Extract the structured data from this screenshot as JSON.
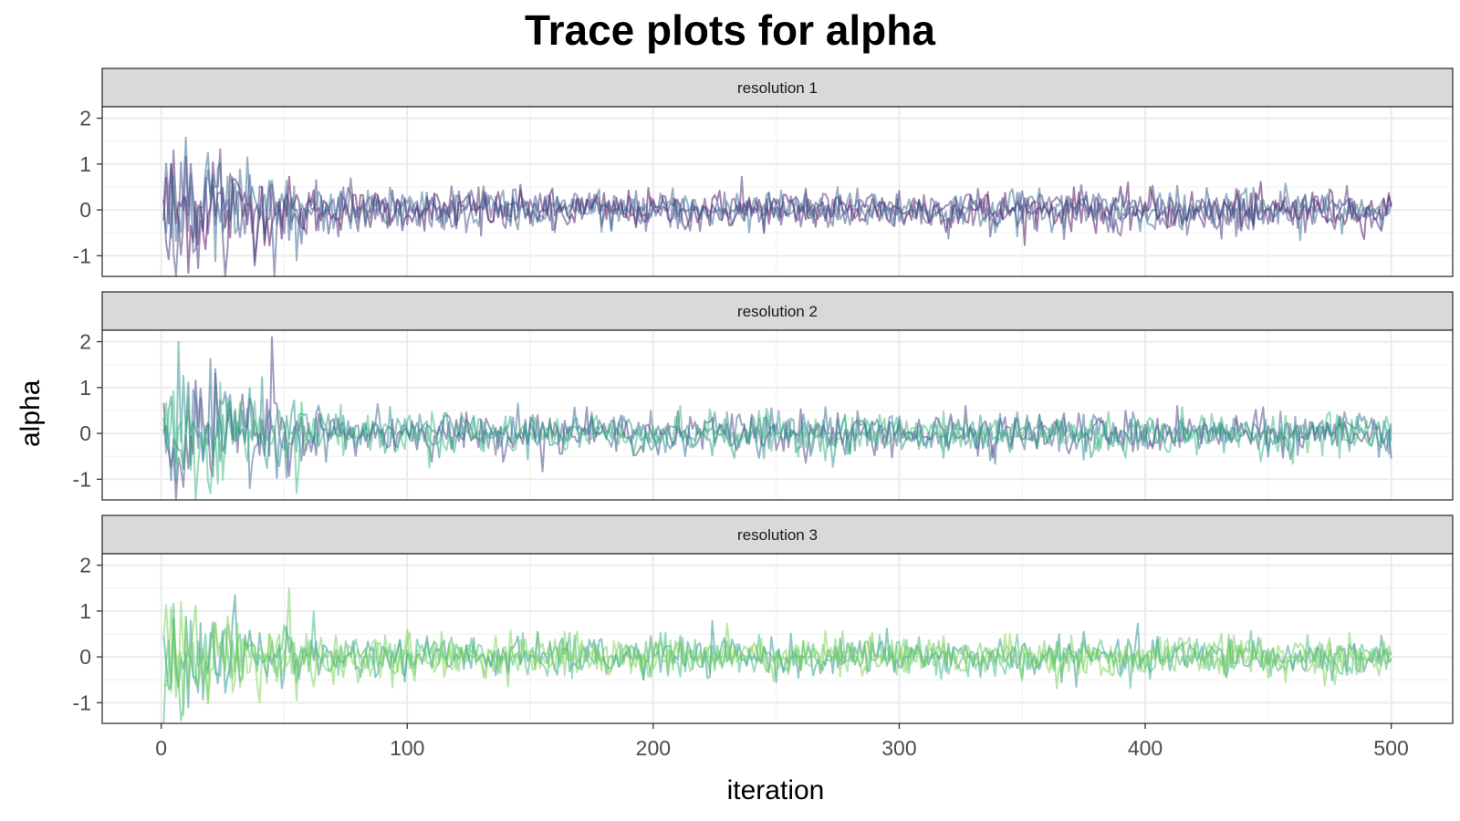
{
  "chart_data": {
    "type": "line",
    "title": "Trace plots for alpha",
    "xlabel": "iteration",
    "ylabel": "alpha",
    "xlim": [
      -24,
      525
    ],
    "ylim": [
      -1.45,
      2.25
    ],
    "x_ticks": [
      0,
      100,
      200,
      300,
      400,
      500
    ],
    "y_ticks": [
      -1,
      0,
      1,
      2
    ],
    "grid": true,
    "legend": "none",
    "iterations": [
      1,
      500
    ],
    "panels": [
      {
        "strip": "resolution 1",
        "series_colors": [
          "#440154",
          "#482878",
          "#3e4a89",
          "#31688e"
        ],
        "early_spread": 0.75,
        "late_spread": 0.22,
        "peak_max": 1.3,
        "peak_min": -1.1
      },
      {
        "strip": "resolution 2",
        "series_colors": [
          "#443a83",
          "#31688e",
          "#21918c",
          "#35b779"
        ],
        "early_spread": 0.75,
        "late_spread": 0.22,
        "peak_max": 2.1,
        "peak_min": -1.3
      },
      {
        "strip": "resolution 3",
        "series_colors": [
          "#21918c",
          "#35b779",
          "#6ece58",
          "#7ad151"
        ],
        "early_spread": 0.7,
        "late_spread": 0.22,
        "peak_max": 1.5,
        "peak_min": -0.95
      }
    ]
  }
}
